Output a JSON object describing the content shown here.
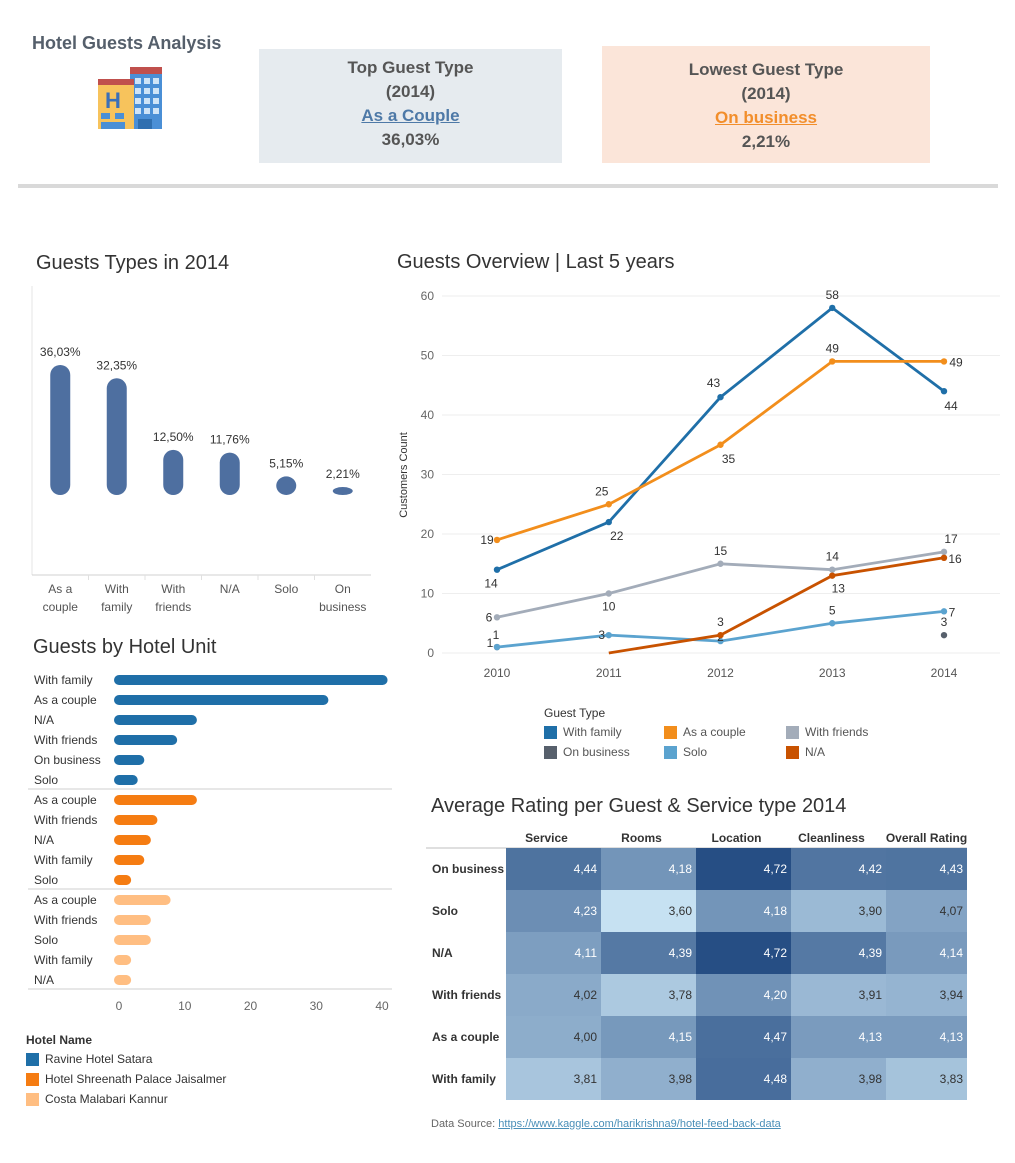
{
  "dashboard": {
    "title": "Hotel Guests Analysis",
    "logo_icon": "hotel-building-icon"
  },
  "kpi_top": {
    "line1": "Top Guest Type",
    "line2": "(2014)",
    "type": "As a Couple",
    "value": "36,03%",
    "bg": "#e6ebef",
    "accent": "#4e79a7"
  },
  "kpi_low": {
    "line1": "Lowest Guest Type",
    "line2": "(2014)",
    "type": "On business",
    "value": "2,21%",
    "bg": "#fbe5d9",
    "accent": "#f28e2b"
  },
  "footer": {
    "label": "Data Source:",
    "link": "https://www.kaggle.com/harikrishna9/hotel-feed-back-data"
  },
  "chart_data": [
    {
      "id": "guest-types",
      "type": "bar",
      "title": "Guests Types in 2014",
      "categories": [
        "As a\ncouple",
        "With\nfamily",
        "With\nfriends",
        "N/A",
        "Solo",
        "On\nbusiness"
      ],
      "values": [
        36.03,
        32.35,
        12.5,
        11.76,
        5.15,
        2.21
      ],
      "labels": [
        "36,03%",
        "32,35%",
        "12,50%",
        "11,76%",
        "5,15%",
        "2,21%"
      ],
      "color": "#4e6fa0"
    },
    {
      "id": "overview",
      "type": "line",
      "title": "Guests Overview | Last 5 years",
      "ylabel": "Customers Count",
      "x": [
        2010,
        2011,
        2012,
        2013,
        2014
      ],
      "ylim": [
        0,
        60
      ],
      "yticks": [
        0,
        10,
        20,
        30,
        40,
        50,
        60
      ],
      "legend_title": "Guest Type",
      "series": [
        {
          "name": "With family",
          "color": "#1f6fa8",
          "values": [
            14,
            22,
            43,
            58,
            44
          ]
        },
        {
          "name": "As a couple",
          "color": "#f28e1c",
          "values": [
            19,
            25,
            35,
            49,
            49
          ]
        },
        {
          "name": "With friends",
          "color": "#a3acb9",
          "values": [
            6,
            10,
            15,
            14,
            17
          ]
        },
        {
          "name": "On business",
          "color": "#57606c",
          "values": [
            1,
            null,
            null,
            null,
            3
          ]
        },
        {
          "name": "Solo",
          "color": "#5ba3cf",
          "values": [
            1,
            3,
            2,
            5,
            7
          ]
        },
        {
          "name": "N/A",
          "color": "#c85200",
          "values": [
            null,
            0,
            3,
            13,
            16
          ]
        }
      ]
    },
    {
      "id": "hotel-units",
      "type": "bar",
      "title": "Guests by Hotel Unit",
      "xlim": [
        0,
        40
      ],
      "xticks": [
        0,
        10,
        20,
        30,
        40
      ],
      "legend_title": "Hotel Name",
      "groups": [
        {
          "hotel": "Ravine Hotel Satara",
          "color": "#1f6fa8",
          "rows": [
            {
              "label": "With family",
              "value": 41
            },
            {
              "label": "As a couple",
              "value": 32
            },
            {
              "label": "N/A",
              "value": 12
            },
            {
              "label": "With friends",
              "value": 9
            },
            {
              "label": "On business",
              "value": 4
            },
            {
              "label": "Solo",
              "value": 3
            }
          ]
        },
        {
          "hotel": "Hotel Shreenath Palace Jaisalmer",
          "color": "#f57c12",
          "rows": [
            {
              "label": "As a couple",
              "value": 12
            },
            {
              "label": "With friends",
              "value": 6
            },
            {
              "label": "N/A",
              "value": 5
            },
            {
              "label": "With family",
              "value": 4
            },
            {
              "label": "Solo",
              "value": 2
            }
          ]
        },
        {
          "hotel": "Costa Malabari Kannur",
          "color": "#ffbe82",
          "rows": [
            {
              "label": "As a couple",
              "value": 8
            },
            {
              "label": "With friends",
              "value": 5
            },
            {
              "label": "Solo",
              "value": 5
            },
            {
              "label": "With family",
              "value": 2
            },
            {
              "label": "N/A",
              "value": 2
            }
          ]
        }
      ]
    },
    {
      "id": "ratings",
      "type": "heatmap",
      "title": "Average Rating per Guest & Service type 2014",
      "columns": [
        "Service",
        "Rooms",
        "Location",
        "Cleanliness",
        "Overall Rating"
      ],
      "rows": [
        "On business",
        "Solo",
        "N/A",
        "With friends",
        "As a couple",
        "With family"
      ],
      "values": [
        [
          4.44,
          4.18,
          4.72,
          4.42,
          4.43
        ],
        [
          4.23,
          3.6,
          4.18,
          3.9,
          4.07
        ],
        [
          4.11,
          4.39,
          4.72,
          4.39,
          4.14
        ],
        [
          4.02,
          3.78,
          4.2,
          3.91,
          3.94
        ],
        [
          4.0,
          4.15,
          4.47,
          4.13,
          4.13
        ],
        [
          3.81,
          3.98,
          4.48,
          3.98,
          3.83
        ]
      ]
    }
  ]
}
